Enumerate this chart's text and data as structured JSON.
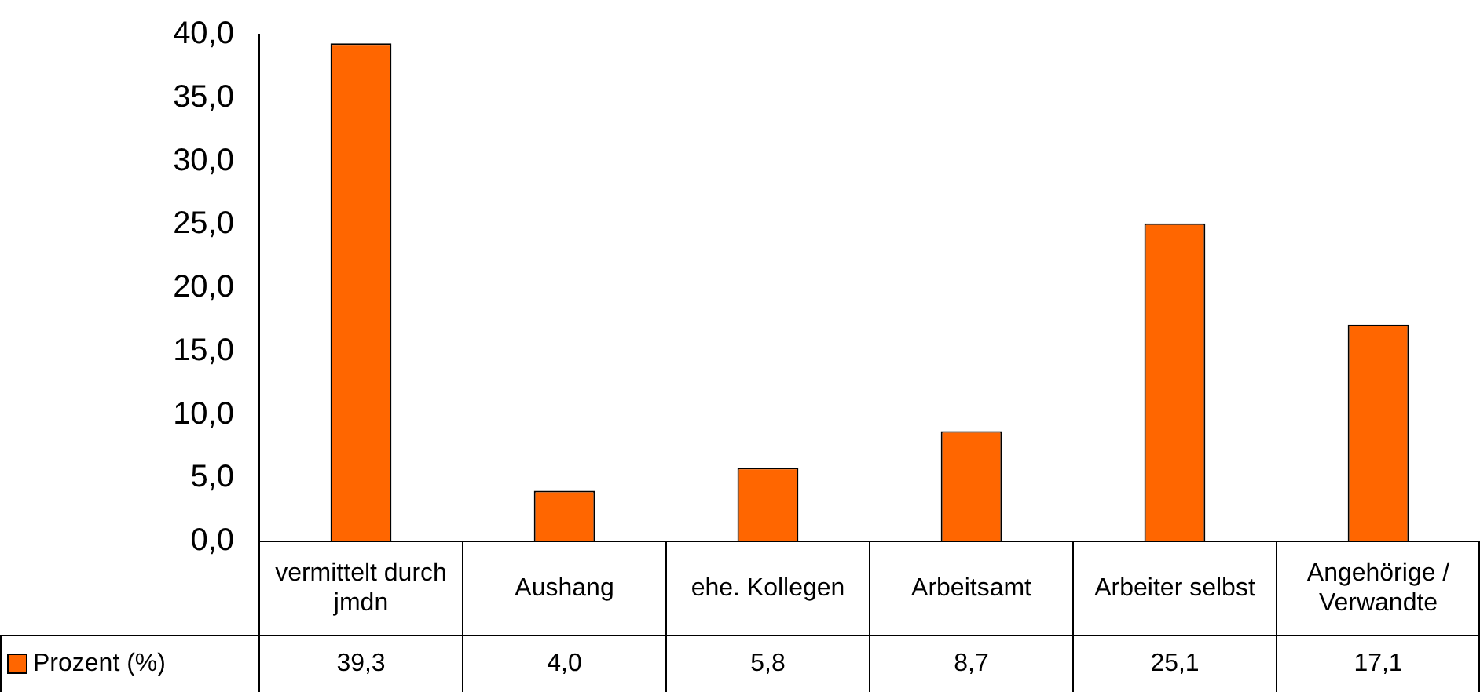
{
  "chart_data": {
    "type": "bar",
    "categories": [
      "vermittelt durch jmdn",
      "Aushang",
      "ehe. Kollegen",
      "Arbeitsamt",
      "Arbeiter selbst",
      "Angehörige / Verwandte"
    ],
    "series": [
      {
        "name": "Prozent (%)",
        "color": "#ff6600",
        "values": [
          39.3,
          4.0,
          5.8,
          8.7,
          25.1,
          17.1
        ],
        "value_labels": [
          "39,3",
          "4,0",
          "5,8",
          "8,7",
          "25,1",
          "17,1"
        ]
      }
    ],
    "ylim": [
      0,
      40
    ],
    "yticks": [
      {
        "value": 0,
        "label": "0,0"
      },
      {
        "value": 5,
        "label": "5,0"
      },
      {
        "value": 10,
        "label": "10,0"
      },
      {
        "value": 15,
        "label": "15,0"
      },
      {
        "value": 20,
        "label": "20,0"
      },
      {
        "value": 25,
        "label": "25,0"
      },
      {
        "value": 30,
        "label": "30,0"
      },
      {
        "value": 35,
        "label": "35,0"
      },
      {
        "value": 40,
        "label": "40,0"
      }
    ],
    "grid": false,
    "legend": "bottom left"
  }
}
